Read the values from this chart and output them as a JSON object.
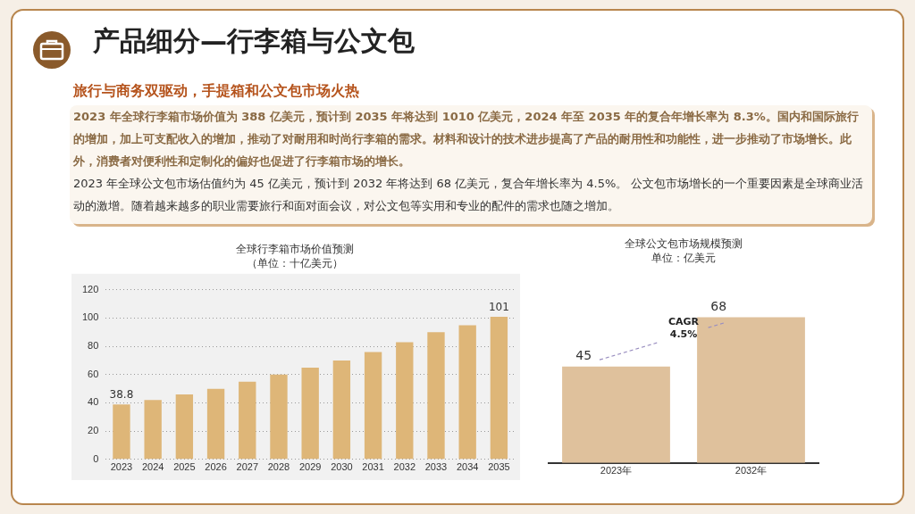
{
  "chart_data": [
    {
      "type": "other",
      "title": "产品细分—行李箱与公文包",
      "subtitle": "旅行与商务双驱动，手提箱和公文包市场火热",
      "annotations": [
        "2023 年全球行李箱市场价值为 388 亿美元，预计到 2035 年将达到 1010 亿美元，2024 年至 2035 年的复合年增长率为 8.3%。国内和国际旅行的增加，加上可支配收入的增加，推动了对耐用和时尚行李箱的需求。材料和设计的技术进步提高了产品的耐用性和功能性，进一步推动了市场增长。此外，消费者对便利性和定制化的偏好也促进了行李箱市场的增长。",
        "2023 年全球公文包市场估值约为 45 亿美元，预计到 2032 年将达到 68 亿美元，复合年增长率为 4.5%。 公文包市场增长的一个重要因素是全球商业活动的激增。随着越来越多的职业需要旅行和面对面会议，对公文包等实用和专业的配件的需求也随之增加。"
      ]
    },
    {
      "type": "bar",
      "title": "全球行李箱市场价值预测",
      "subtitle": "（单位：十亿美元）",
      "categories": [
        "2023",
        "2024",
        "2025",
        "2026",
        "2027",
        "2028",
        "2029",
        "2030",
        "2031",
        "2032",
        "2033",
        "2034",
        "2035"
      ],
      "values": [
        38.8,
        42,
        46,
        50,
        55,
        60,
        65,
        70,
        76,
        83,
        90,
        95,
        101
      ],
      "color": "#deb678",
      "value_labels": [
        "38.8",
        null,
        null,
        null,
        null,
        null,
        null,
        null,
        null,
        null,
        null,
        null,
        "101"
      ],
      "ylim": [
        0,
        120
      ],
      "yticks": [
        0,
        20,
        40,
        60,
        80,
        100,
        120
      ],
      "grid": "y"
    },
    {
      "type": "bar",
      "title": "全球公文包市场规模预测",
      "subtitle": "单位：亿美元",
      "categories": [
        "2023年",
        "2032年"
      ],
      "values": [
        45,
        68
      ],
      "color": "#dfc19c",
      "data_labels": true,
      "tick_labels": "x",
      "annotations": [
        "CAGR 4.5%"
      ]
    }
  ]
}
